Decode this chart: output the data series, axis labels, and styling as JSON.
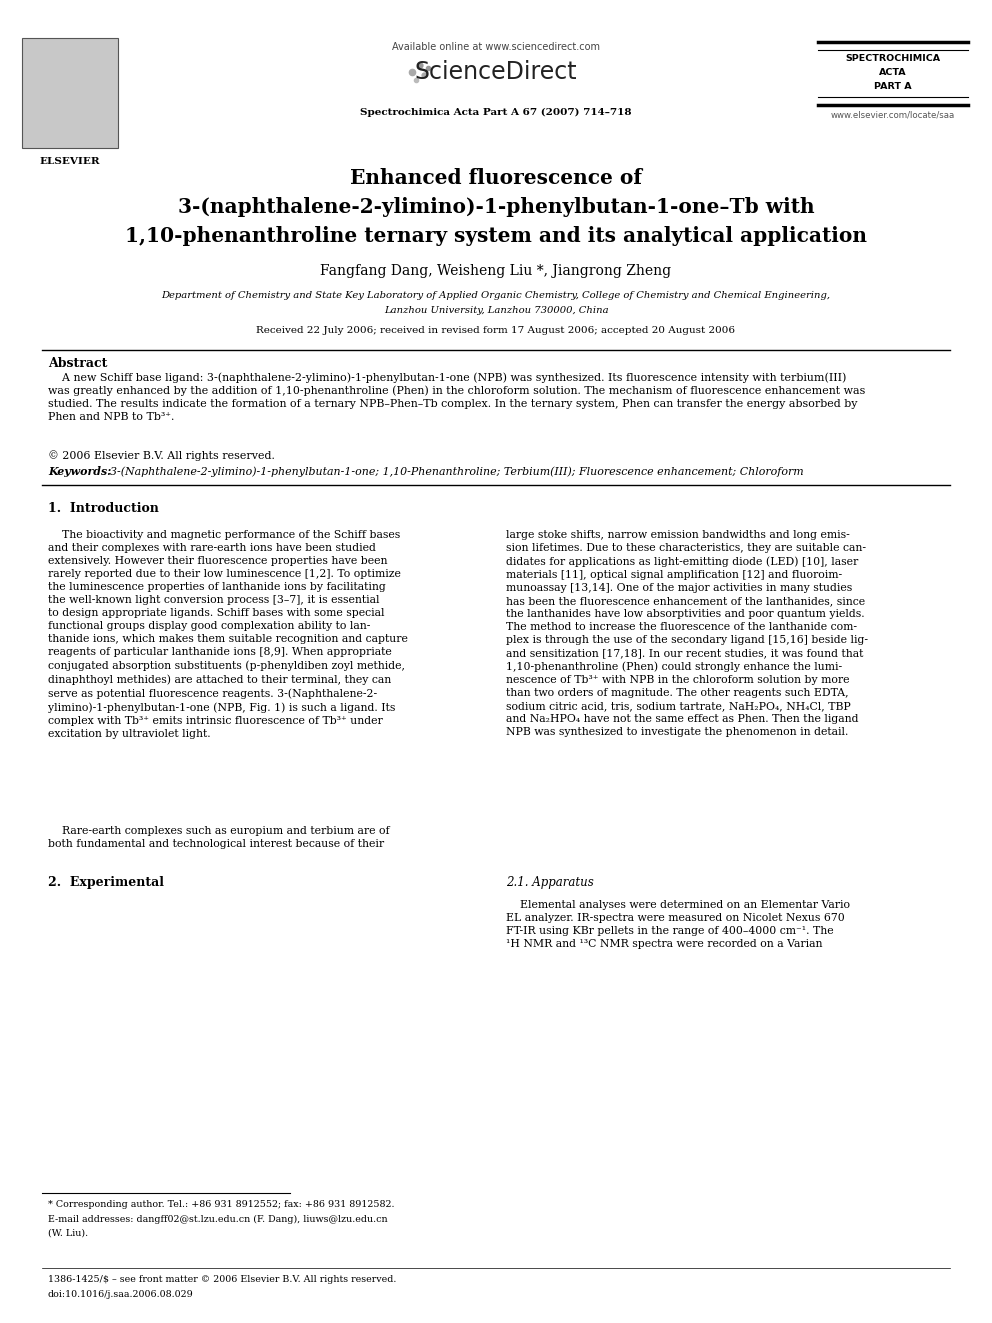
{
  "page_width": 9.92,
  "page_height": 13.23,
  "bg_color": "#ffffff",
  "header_available": "Available online at www.sciencedirect.com",
  "header_sd": "ScienceDirect",
  "header_journal": "Spectrochimica Acta Part A 67 (2007) 714–718",
  "header_j1": "SPECTROCHIMICA",
  "header_j2": "ACTA",
  "header_j3": "PART A",
  "header_website": "www.elsevier.com/locate/saa",
  "header_elsevier": "ELSEVIER",
  "title1": "Enhanced fluorescence of",
  "title2": "3-(naphthalene-2-ylimino)-1-phenylbutan-1-one–Tb with",
  "title3": "1,10-phenanthroline ternary system and its analytical application",
  "authors": "Fangfang Dang, Weisheng Liu *, Jiangrong Zheng",
  "affil1": "Department of Chemistry and State Key Laboratory of Applied Organic Chemistry, College of Chemistry and Chemical Engineering,",
  "affil2": "Lanzhou University, Lanzhou 730000, China",
  "received": "Received 22 July 2006; received in revised form 17 August 2006; accepted 20 August 2006",
  "abstract_title": "Abstract",
  "abstract_line1": "    A new Schiff base ligand: 3-(naphthalene-2-ylimino)-1-phenylbutan-1-one (NPB) was synthesized. Its fluorescence intensity with terbium(III)",
  "abstract_line2": "was greatly enhanced by the addition of 1,10-phenanthroline (Phen) in the chloroform solution. The mechanism of fluorescence enhancement was",
  "abstract_line3": "studied. The results indicate the formation of a ternary NPB–Phen–Tb complex. In the ternary system, Phen can transfer the energy absorbed by",
  "abstract_line4": "Phen and NPB to Tb³⁺.",
  "copyright": "© 2006 Elsevier B.V. All rights reserved.",
  "kw_label": "Keywords:",
  "kw_text": "  3-(Naphthalene-2-ylimino)-1-phenylbutan-1-one; 1,10-Phenanthroline; Terbium(III); Fluorescence enhancement; Chloroform",
  "s1_title": "1.  Introduction",
  "s1_left_p1": "    The bioactivity and magnetic performance of the Schiff bases\nand their complexes with rare-earth ions have been studied\nextensively. However their fluorescence properties have been\nrarely reported due to their low luminescence [1,2]. To optimize\nthe luminescence properties of lanthanide ions by facilitating\nthe well-known light conversion process [3–7], it is essential\nto design appropriate ligands. Schiff bases with some special\nfunctional groups display good complexation ability to lan-\nthanide ions, which makes them suitable recognition and capture\nreagents of particular lanthanide ions [8,9]. When appropriate\nconjugated absorption substituents (p-phenyldiben zoyl methide,\ndinaphthoyl methides) are attached to their terminal, they can\nserve as potential fluorescence reagents. 3-(Naphthalene-2-\nylimino)-1-phenylbutan-1-one (NPB, Fig. 1) is such a ligand. Its\ncomplex with Tb³⁺ emits intrinsic fluorescence of Tb³⁺ under\nexcitation by ultraviolet light.",
  "s1_left_p2": "    Rare-earth complexes such as europium and terbium are of\nboth fundamental and technological interest because of their",
  "s1_right_p1": "large stoke shifts, narrow emission bandwidths and long emis-\nsion lifetimes. Due to these characteristics, they are suitable can-\ndidates for applications as light-emitting diode (LED) [10], laser\nmaterials [11], optical signal amplification [12] and fluoroim-\nmunoassay [13,14]. One of the major activities in many studies\nhas been the fluorescence enhancement of the lanthanides, since\nthe lanthanides have low absorptivities and poor quantum yields.\nThe method to increase the fluorescence of the lanthanide com-\nplex is through the use of the secondary ligand [15,16] beside lig-\nand sensitization [17,18]. In our recent studies, it was found that\n1,10-phenanthroline (Phen) could strongly enhance the lumi-\nnescence of Tb³⁺ with NPB in the chloroform solution by more\nthan two orders of magnitude. The other reagents such EDTA,\nsodium citric acid, tris, sodium tartrate, NaH₂PO₄, NH₄Cl, TBP\nand Na₂HPO₄ have not the same effect as Phen. Then the ligand\nNPB was synthesized to investigate the phenomenon in detail.",
  "s2_title": "2.  Experimental",
  "s21_title": "2.1. Apparatus",
  "s21_text": "    Elemental analyses were determined on an Elementar Vario\nEL analyzer. IR-spectra were measured on Nicolet Nexus 670\nFT-IR using KBr pellets in the range of 400–4000 cm⁻¹. The\n¹H NMR and ¹³C NMR spectra were recorded on a Varian",
  "footnote1": "* Corresponding author. Tel.: +86 931 8912552; fax: +86 931 8912582.",
  "footnote2": "E-mail addresses: dangff02@st.lzu.edu.cn (F. Dang), liuws@lzu.edu.cn",
  "footnote3": "(W. Liu).",
  "footer1": "1386-1425/$ – see front matter © 2006 Elsevier B.V. All rights reserved.",
  "footer2": "doi:10.1016/j.saa.2006.08.029"
}
